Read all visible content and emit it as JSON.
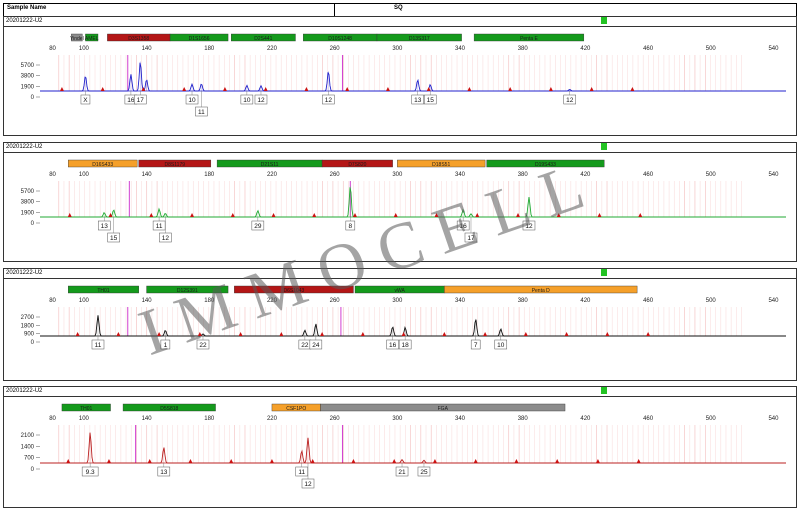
{
  "header": {
    "col_sample": "Sample Name",
    "col_center": "SQ"
  },
  "watermark": "IMMOCELL",
  "colors": {
    "blue": "#2222cc",
    "green": "#22aa33",
    "black": "#111111",
    "red": "#bb2222",
    "marker_green": "#149a1c",
    "marker_red": "#b41616",
    "marker_orange": "#f5a02a",
    "marker_gray": "#8c8c8c",
    "line_magenta": "#d13fd1",
    "size_tick": "#f2b5b5"
  },
  "chart_data": [
    {
      "type": "line",
      "panel_title": "20201222-U2",
      "series_color": "#2222cc",
      "x_ticks": [
        80,
        100,
        120,
        140,
        160,
        180,
        200,
        220,
        240,
        260,
        280,
        300,
        320,
        340,
        360,
        380,
        400,
        420,
        440,
        460,
        480,
        500,
        520,
        540
      ],
      "x_tick_labels": [
        "80",
        "100",
        "140",
        "180",
        "220",
        "260",
        "300",
        "340",
        "380",
        "420",
        "460",
        "500",
        "540"
      ],
      "xlim": [
        72,
        548
      ],
      "y_ticks": [
        "5700",
        "3800",
        "1900",
        "0"
      ],
      "ylim": [
        0,
        8000
      ],
      "markers": [
        {
          "x0": 92,
          "x1": 99,
          "label": "Yindel",
          "color": "#8c8c8c"
        },
        {
          "x0": 101,
          "x1": 109,
          "label": "AMEL",
          "color": "#149a1c"
        },
        {
          "x0": 115,
          "x1": 155,
          "label": "D3S1358",
          "color": "#b41616"
        },
        {
          "x0": 155,
          "x1": 192,
          "label": "D1S1656",
          "color": "#149a1c"
        },
        {
          "x0": 194,
          "x1": 235,
          "label": "D2S441",
          "color": "#149a1c"
        },
        {
          "x0": 240,
          "x1": 287,
          "label": "D10S1248",
          "color": "#149a1c"
        },
        {
          "x0": 287,
          "x1": 341,
          "label": "D13S317",
          "color": "#149a1c"
        },
        {
          "x0": 349,
          "x1": 419,
          "label": "Penta E",
          "color": "#149a1c"
        }
      ],
      "peaks": [
        {
          "x": 101,
          "height": 3800,
          "allele": "X"
        },
        {
          "x": 130,
          "height": 4200,
          "allele": "16"
        },
        {
          "x": 136,
          "height": 7400,
          "allele": "17"
        },
        {
          "x": 140,
          "height": 2900,
          "allele": ""
        },
        {
          "x": 169,
          "height": 1700,
          "allele": "10"
        },
        {
          "x": 175,
          "height": 1800,
          "allele": "11"
        },
        {
          "x": 204,
          "height": 1400,
          "allele": "10"
        },
        {
          "x": 213,
          "height": 1300,
          "allele": "12"
        },
        {
          "x": 256,
          "height": 5000,
          "allele": "12"
        },
        {
          "x": 313,
          "height": 2800,
          "allele": "13"
        },
        {
          "x": 321,
          "height": 1600,
          "allele": "15"
        },
        {
          "x": 410,
          "height": 400,
          "allele": "12"
        }
      ],
      "allele_labels": [
        "X",
        "16",
        "17",
        "10",
        "11",
        "10",
        "12",
        "12",
        "13",
        "15",
        "12"
      ]
    },
    {
      "type": "line",
      "panel_title": "20201222-U2",
      "series_color": "#22aa33",
      "x_ticks": [
        80,
        100,
        120,
        140,
        160,
        180,
        200,
        220,
        240,
        260,
        280,
        300,
        320,
        340,
        360,
        380,
        400,
        420,
        440,
        460,
        480,
        500,
        520,
        540
      ],
      "x_tick_labels": [
        "80",
        "100",
        "140",
        "180",
        "220",
        "260",
        "300",
        "340",
        "380",
        "420",
        "460",
        "500",
        "540"
      ],
      "xlim": [
        72,
        548
      ],
      "y_ticks": [
        "5700",
        "3800",
        "1900",
        "0"
      ],
      "ylim": [
        0,
        8000
      ],
      "markers": [
        {
          "x0": 90,
          "x1": 134,
          "label": "D16S433",
          "color": "#f5a02a"
        },
        {
          "x0": 135,
          "x1": 181,
          "label": "D8S1179",
          "color": "#b41616"
        },
        {
          "x0": 185,
          "x1": 252,
          "label": "D21S11",
          "color": "#149a1c"
        },
        {
          "x0": 252,
          "x1": 297,
          "label": "D7S820",
          "color": "#b41616"
        },
        {
          "x0": 300,
          "x1": 356,
          "label": "D18S51",
          "color": "#f5a02a"
        },
        {
          "x0": 357,
          "x1": 432,
          "label": "D19S433",
          "color": "#149a1c"
        }
      ],
      "peaks": [
        {
          "x": 113,
          "height": 1100,
          "allele": "13"
        },
        {
          "x": 119,
          "height": 1800,
          "allele": "15"
        },
        {
          "x": 148,
          "height": 2000,
          "allele": "11"
        },
        {
          "x": 152,
          "height": 900,
          "allele": "12"
        },
        {
          "x": 211,
          "height": 1600,
          "allele": "29"
        },
        {
          "x": 270,
          "height": 7800,
          "allele": "8"
        },
        {
          "x": 342,
          "height": 1800,
          "allele": "16"
        },
        {
          "x": 347,
          "height": 800,
          "allele": "17"
        },
        {
          "x": 384,
          "height": 5000,
          "allele": "12"
        }
      ],
      "allele_labels": [
        "13",
        "15",
        "11",
        "12",
        "29",
        "8",
        "16",
        "17",
        "12"
      ]
    },
    {
      "type": "line",
      "panel_title": "20201222-U2",
      "series_color": "#111111",
      "x_ticks": [
        80,
        100,
        120,
        140,
        160,
        180,
        200,
        220,
        240,
        260,
        280,
        300,
        320,
        340,
        360,
        380,
        400,
        420,
        440,
        460,
        480,
        500,
        520,
        540
      ],
      "x_tick_labels": [
        "80",
        "100",
        "140",
        "180",
        "220",
        "260",
        "300",
        "340",
        "380",
        "420",
        "460",
        "500",
        "540"
      ],
      "xlim": [
        72,
        548
      ],
      "y_ticks": [
        "2700",
        "1800",
        "900",
        "0"
      ],
      "ylim": [
        0,
        3500
      ],
      "markers": [
        {
          "x0": 90,
          "x1": 135,
          "label": "TH01",
          "color": "#149a1c"
        },
        {
          "x0": 140,
          "x1": 192,
          "label": "D12S391",
          "color": "#149a1c"
        },
        {
          "x0": 196,
          "x1": 272,
          "label": "D6S1043",
          "color": "#b41616"
        },
        {
          "x0": 273,
          "x1": 330,
          "label": "vWA",
          "color": "#149a1c"
        },
        {
          "x0": 330,
          "x1": 453,
          "label": "Penta D",
          "color": "#f5a02a"
        }
      ],
      "peaks": [
        {
          "x": 109,
          "height": 2900,
          "allele": "11"
        },
        {
          "x": 152,
          "height": 800,
          "allele": "1"
        },
        {
          "x": 176,
          "height": 300,
          "allele": "22"
        },
        {
          "x": 241,
          "height": 800,
          "allele": "22"
        },
        {
          "x": 248,
          "height": 1700,
          "allele": "24"
        },
        {
          "x": 297,
          "height": 1300,
          "allele": "16"
        },
        {
          "x": 305,
          "height": 1200,
          "allele": "18"
        },
        {
          "x": 350,
          "height": 2400,
          "allele": "7"
        },
        {
          "x": 366,
          "height": 1000,
          "allele": "10"
        }
      ],
      "allele_labels": [
        "11",
        "1",
        "22",
        "22",
        "24",
        "16",
        "18",
        "7",
        "10"
      ]
    },
    {
      "type": "line",
      "panel_title": "20201222-U2",
      "series_color": "#bb2222",
      "x_ticks": [
        80,
        100,
        120,
        140,
        160,
        180,
        200,
        220,
        240,
        260,
        280,
        300,
        320,
        340,
        360,
        380,
        400,
        420,
        440,
        460,
        480,
        500,
        520,
        540
      ],
      "x_tick_labels": [
        "80",
        "100",
        "140",
        "180",
        "220",
        "260",
        "300",
        "340",
        "380",
        "420",
        "460",
        "500",
        "540"
      ],
      "xlim": [
        72,
        548
      ],
      "y_ticks": [
        "2100",
        "1400",
        "700",
        "0"
      ],
      "ylim": [
        0,
        2500
      ],
      "markers": [
        {
          "x0": 86,
          "x1": 117,
          "label": "TH01",
          "color": "#149a1c"
        },
        {
          "x0": 125,
          "x1": 184,
          "label": "D5S818",
          "color": "#149a1c"
        },
        {
          "x0": 220,
          "x1": 251,
          "label": "CSF1PO",
          "color": "#f5a02a"
        },
        {
          "x0": 251,
          "x1": 407,
          "label": "FGA",
          "color": "#8c8c8c"
        }
      ],
      "peaks": [
        {
          "x": 104,
          "height": 2250,
          "allele": "9.3"
        },
        {
          "x": 151,
          "height": 1150,
          "allele": "13"
        },
        {
          "x": 239,
          "height": 900,
          "allele": "11"
        },
        {
          "x": 243,
          "height": 1850,
          "allele": "12"
        },
        {
          "x": 303,
          "height": 250,
          "allele": "21"
        },
        {
          "x": 317,
          "height": 200,
          "allele": "25"
        }
      ],
      "allele_labels": [
        "9.3",
        "13",
        "11",
        "12",
        "21",
        "25"
      ]
    }
  ]
}
